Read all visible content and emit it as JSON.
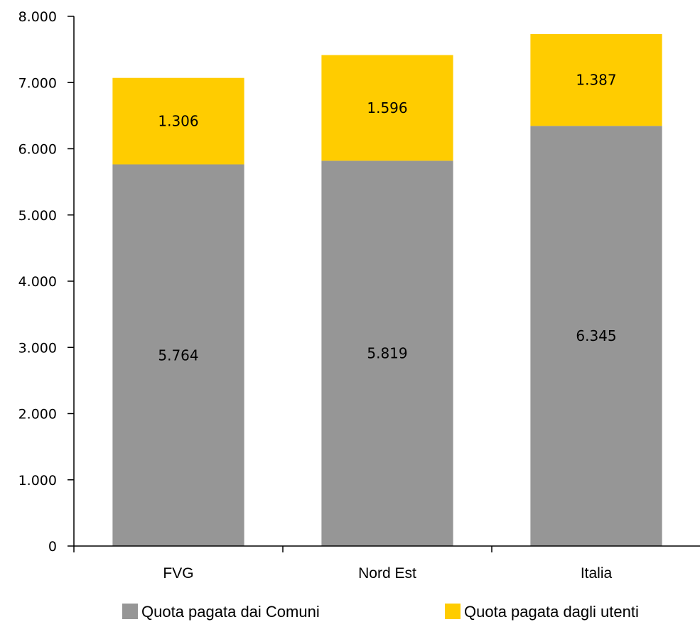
{
  "chart_data": {
    "type": "bar",
    "stacked": true,
    "categories": [
      "FVG",
      "Nord Est",
      "Italia"
    ],
    "series": [
      {
        "name": "Quota pagata  dai Comuni",
        "values": [
          5764,
          5819,
          6345
        ],
        "labels": [
          "5.764",
          "5.819",
          "6.345"
        ],
        "color": "#969696"
      },
      {
        "name": "Quota pagata dagli utenti",
        "values": [
          1306,
          1596,
          1387
        ],
        "labels": [
          "1.306",
          "1.596",
          "1.387"
        ],
        "color": "#ffcc00"
      }
    ],
    "ylim": [
      0,
      8000
    ],
    "yticks": [
      0,
      1000,
      2000,
      3000,
      4000,
      5000,
      6000,
      7000,
      8000
    ],
    "ytick_labels": [
      "0",
      "1.000",
      "2.000",
      "3.000",
      "4.000",
      "5.000",
      "6.000",
      "7.000",
      "8.000"
    ],
    "grid": false,
    "legend_position": "bottom"
  }
}
